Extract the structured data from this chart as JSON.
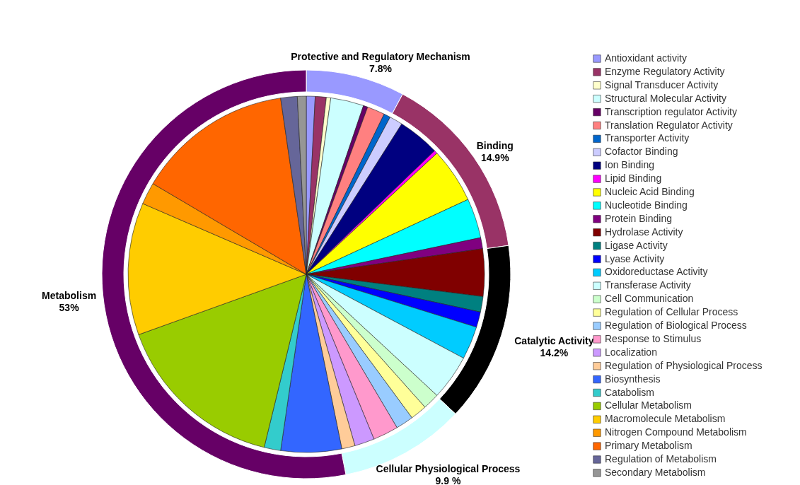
{
  "chart_data": [
    {
      "type": "donut",
      "categories": [
        "Protective and Regulatory Mechanism",
        "Binding",
        "Catalytic Activity",
        "Cellular Physiological Process",
        "Metabolism"
      ],
      "values": [
        7.8,
        14.9,
        14.2,
        9.9,
        53
      ],
      "value_labels": [
        "7.8%",
        "14.9%",
        "14.2%",
        "9.9 %",
        "53%"
      ],
      "colors": [
        "#9999ff",
        "#993366",
        "#000000",
        "#ccffff",
        "#660066"
      ]
    },
    {
      "type": "pie",
      "legend": "right",
      "categories": [
        "Antioxidant activity",
        "Enzyme Regulatory Activity",
        "Signal Transducer Activity",
        "Structural Molecular Activity",
        "Transcription regulator Activity",
        "Translation Regulator Activity",
        "Transporter Activity",
        "Cofactor Binding",
        "Ion Binding",
        "Lipid Binding",
        "Nucleic Acid Binding",
        "Nucleotide Binding",
        "Protein Binding",
        "Hydrolase Activity",
        "Ligase Activity",
        "Lyase Activity",
        "Oxidoreductase Activity",
        "Transferase Activity",
        "Cell Communication",
        "Regulation of Cellular Process",
        "Regulation of Biological Process",
        "Response to Stimulus",
        "Localization",
        "Regulation of Physiological Process",
        "Biosynthesis",
        "Catabolism",
        "Cellular Metabolism",
        "Macromolecule Metabolism",
        "Nitrogen Compound Metabolism",
        "Primary Metabolism",
        "Regulation of Metabolism",
        "Secondary Metabolism"
      ],
      "values": [
        0.8,
        1.0,
        0.4,
        3.0,
        0.4,
        1.6,
        0.6,
        1.2,
        3.8,
        0.3,
        5.0,
        3.6,
        1.0,
        4.3,
        1.4,
        1.4,
        3.0,
        4.1,
        1.5,
        1.5,
        1.6,
        2.3,
        1.8,
        1.2,
        5.5,
        1.5,
        15.7,
        12.0,
        2.0,
        14.2,
        1.5,
        0.8
      ],
      "colors": [
        "#9999ff",
        "#993366",
        "#ffffcc",
        "#ccffff",
        "#660066",
        "#ff8080",
        "#0066cc",
        "#ccccff",
        "#000080",
        "#ff00ff",
        "#ffff00",
        "#00ffff",
        "#800080",
        "#800000",
        "#008080",
        "#0000ff",
        "#00ccff",
        "#ccffff",
        "#ccffcc",
        "#ffff99",
        "#99ccff",
        "#ff99cc",
        "#cc99ff",
        "#ffcc99",
        "#3366ff",
        "#33cccc",
        "#99cc00",
        "#ffcc00",
        "#ff9900",
        "#ff6600",
        "#666699",
        "#969696"
      ]
    }
  ]
}
